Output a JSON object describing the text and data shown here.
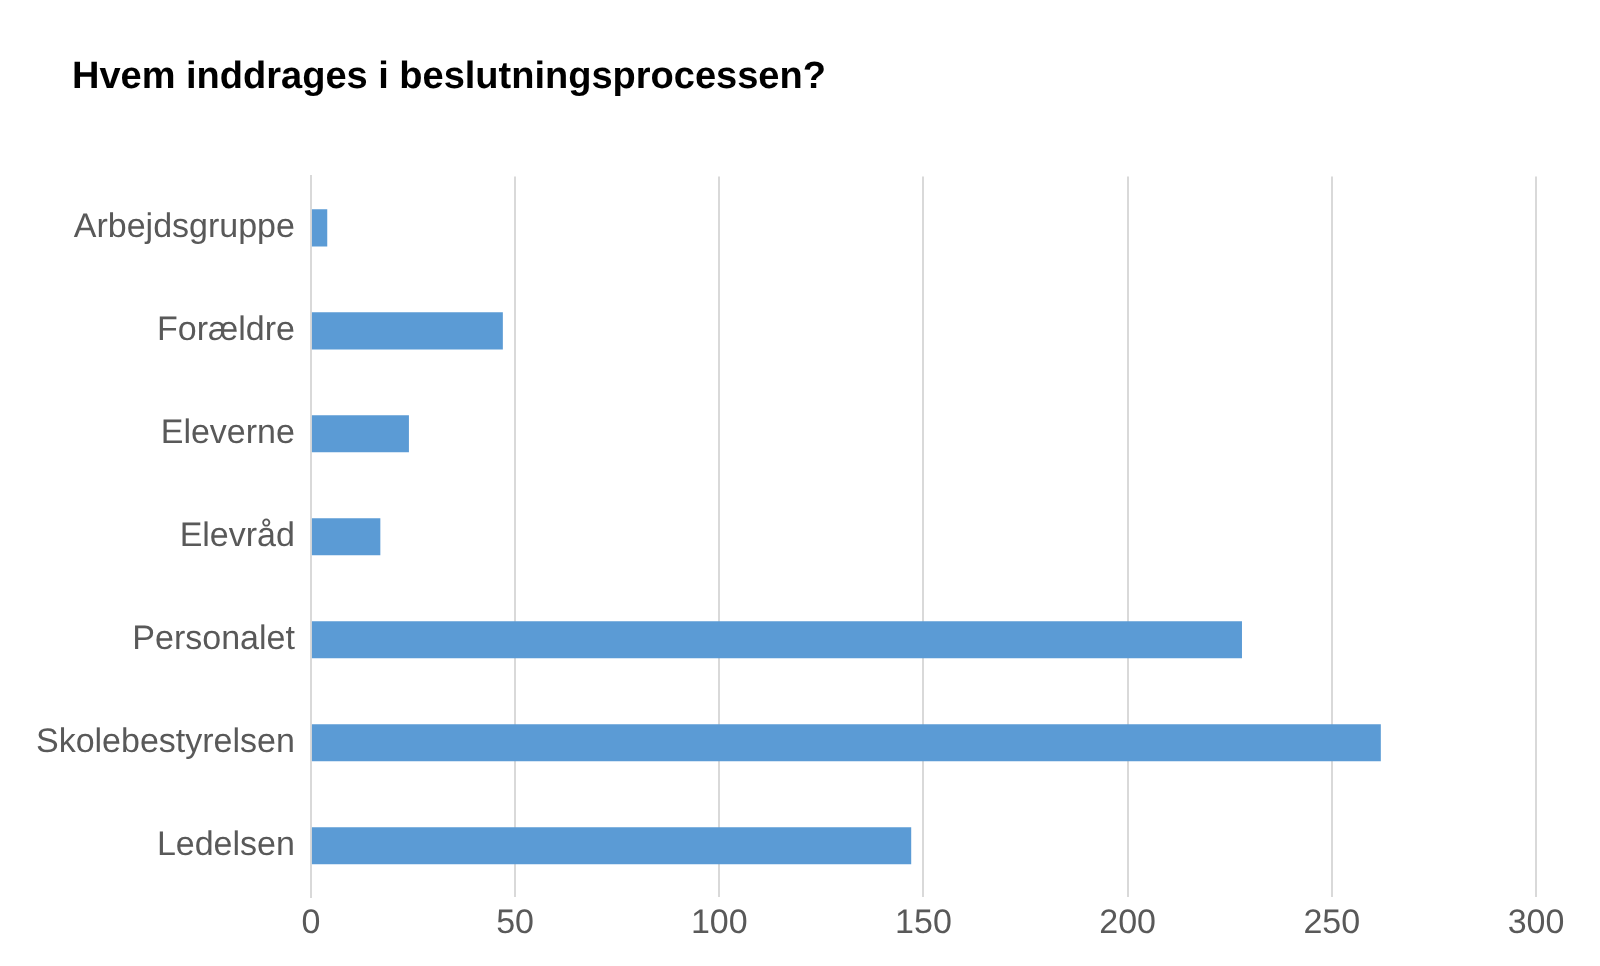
{
  "chart_data": {
    "type": "bar",
    "orientation": "horizontal",
    "title": "Hvem inddrages i beslutningsprocessen?",
    "categories": [
      "Arbejdsgruppe",
      "Forældre",
      "Eleverne",
      "Elevråd",
      "Personalet",
      "Skolebestyrelsen",
      "Ledelsen"
    ],
    "values": [
      4,
      47,
      24,
      17,
      228,
      262,
      147
    ],
    "color": "#5b9bd5",
    "xlim": [
      0,
      300
    ],
    "xticks": [
      0,
      50,
      100,
      150,
      200,
      250,
      300
    ],
    "grid": "x",
    "legend": false
  }
}
